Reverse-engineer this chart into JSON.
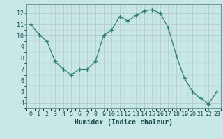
{
  "x": [
    0,
    1,
    2,
    3,
    4,
    5,
    6,
    7,
    8,
    9,
    10,
    11,
    12,
    13,
    14,
    15,
    16,
    17,
    18,
    19,
    20,
    21,
    22,
    23
  ],
  "y": [
    11.0,
    10.1,
    9.5,
    7.7,
    7.0,
    6.5,
    7.0,
    7.0,
    7.7,
    10.0,
    10.5,
    11.7,
    11.3,
    11.8,
    12.2,
    12.3,
    12.0,
    10.7,
    8.2,
    6.2,
    5.0,
    4.4,
    3.9,
    5.0
  ],
  "line_color": "#2e7d6e",
  "marker": "+",
  "marker_size": 4,
  "bg_color": "#c8e8e8",
  "grid_color_major": "#b8c8cc",
  "grid_color_minor": "#ddeaea",
  "xlabel": "Humidex (Indice chaleur)",
  "xlabel_fontsize": 7,
  "tick_fontsize": 6,
  "xlim": [
    -0.5,
    23.5
  ],
  "ylim": [
    3.5,
    12.8
  ],
  "yticks": [
    4,
    5,
    6,
    7,
    8,
    9,
    10,
    11,
    12
  ],
  "xticks": [
    0,
    1,
    2,
    3,
    4,
    5,
    6,
    7,
    8,
    9,
    10,
    11,
    12,
    13,
    14,
    15,
    16,
    17,
    18,
    19,
    20,
    21,
    22,
    23
  ]
}
